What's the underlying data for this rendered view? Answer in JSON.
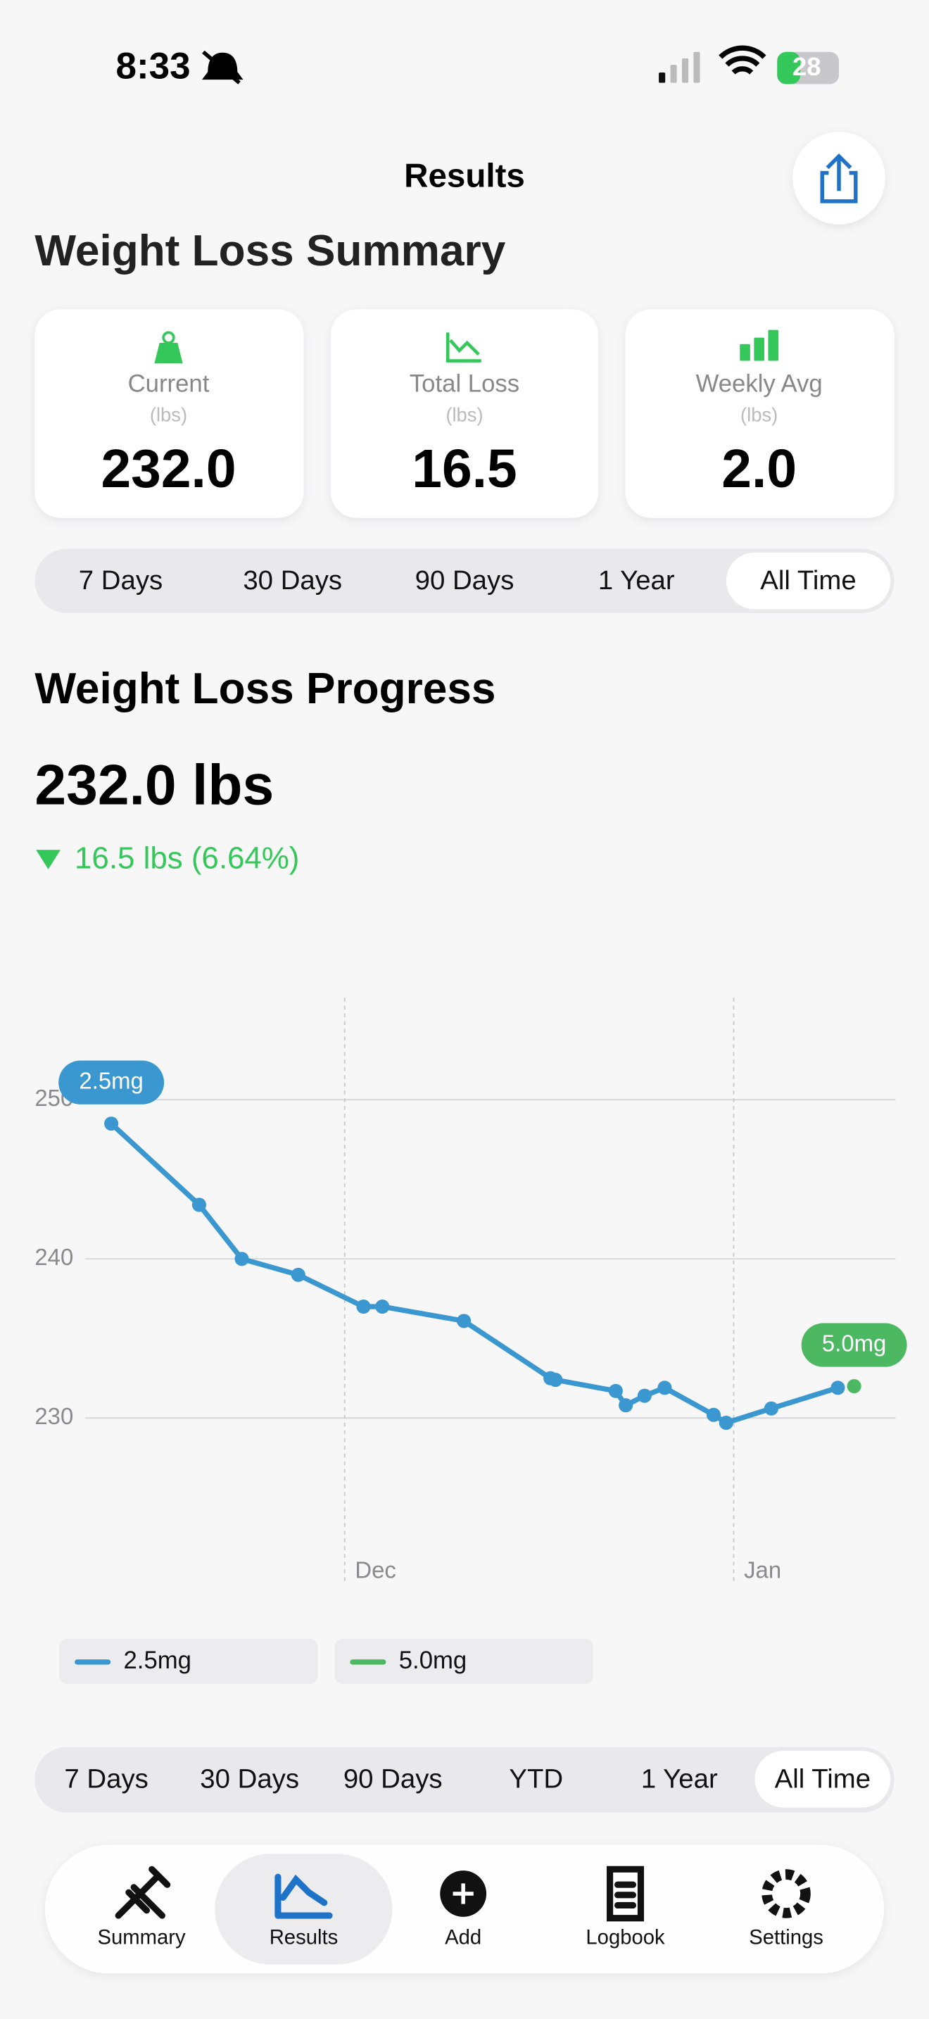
{
  "status_bar": {
    "time": "8:33",
    "battery": "28"
  },
  "header": {
    "title": "Results"
  },
  "summary": {
    "title": "Weight Loss Summary",
    "cards": [
      {
        "label": "Current",
        "unit": "(lbs)",
        "value": "232.0"
      },
      {
        "label": "Total Loss",
        "unit": "(lbs)",
        "value": "16.5"
      },
      {
        "label": "Weekly Avg",
        "unit": "(lbs)",
        "value": "2.0"
      }
    ]
  },
  "range_top": {
    "options": [
      "7 Days",
      "30 Days",
      "90 Days",
      "1 Year",
      "All Time"
    ],
    "selected": "All Time"
  },
  "progress": {
    "title": "Weight Loss Progress",
    "current": "232.0 lbs",
    "change": "16.5 lbs (6.64%)"
  },
  "chart_data": {
    "type": "line",
    "x": [
      -18.6,
      -11.6,
      -8.2,
      -3.7,
      1.5,
      3.0,
      9.5,
      16.4,
      16.8,
      21.6,
      22.4,
      23.9,
      25.5,
      29.4,
      30.4,
      34.0,
      39.3,
      40.6
    ],
    "series": [
      {
        "name": "2.5mg",
        "color": "#3a97d0",
        "values": [
          248.5,
          243.4,
          240.0,
          239.0,
          237.0,
          237.0,
          236.1,
          232.5,
          232.4,
          231.7,
          230.8,
          231.4,
          231.9,
          230.2,
          229.7,
          230.6,
          231.9,
          null
        ]
      },
      {
        "name": "5.0mg",
        "color": "#4cb862",
        "values": [
          null,
          null,
          null,
          null,
          null,
          null,
          null,
          null,
          null,
          null,
          null,
          null,
          null,
          null,
          null,
          null,
          null,
          232.0
        ]
      }
    ],
    "xlim": [
      -24.7,
      43.9
    ],
    "xticks": [
      {
        "value": 0,
        "label": "Dec"
      },
      {
        "value": 31,
        "label": "Jan"
      }
    ],
    "ylim": [
      219.6,
      256.4
    ],
    "yticks": [
      230,
      240,
      250
    ],
    "grid": true
  },
  "range_bottom": {
    "options": [
      "7 Days",
      "30 Days",
      "90 Days",
      "YTD",
      "1 Year",
      "All Time"
    ],
    "selected": "All Time"
  },
  "tab_bar": {
    "tabs": [
      "Summary",
      "Results",
      "Add",
      "Logbook",
      "Settings"
    ],
    "selected": "Results"
  }
}
